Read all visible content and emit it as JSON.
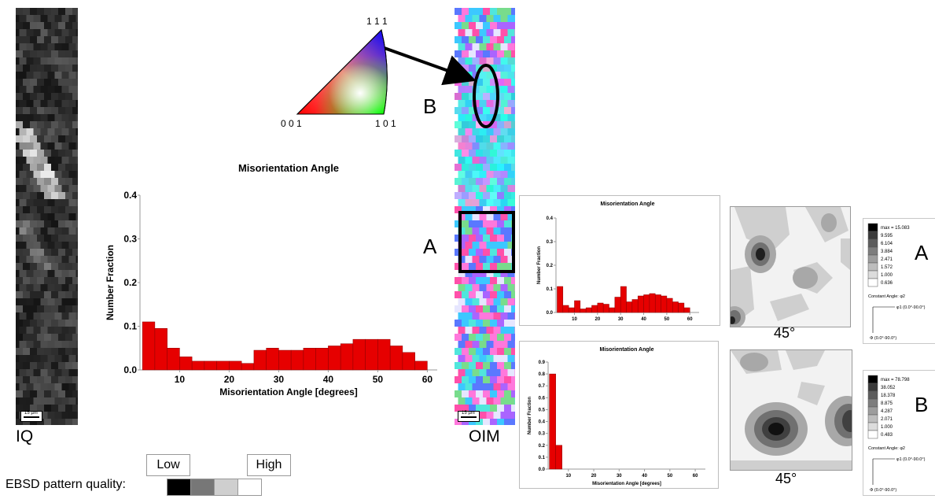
{
  "labels": {
    "iq": "IQ",
    "oim": "OIM",
    "region_a": "A",
    "region_b": "B",
    "ipf_111": "1 1 1",
    "ipf_001": "0 0 1",
    "ipf_101": "1 0 1",
    "scale_bar": "15 µm",
    "angle_top": "45°",
    "angle_bottom": "45°",
    "pole_a": "A",
    "pole_b": "B"
  },
  "quality": {
    "label": "EBSD pattern quality:",
    "low": "Low",
    "high": "High",
    "swatches": [
      "#000000",
      "#777777",
      "#cfcfcf",
      "#ffffff"
    ]
  },
  "legend_a": {
    "values": [
      "max = 15.083",
      "9.595",
      "6.104",
      "3.884",
      "2.471",
      "1.572",
      "1.000",
      "0.636"
    ],
    "const": "Constant Angle: φ2",
    "axis1": "φ1 (0.0°-90.0°)",
    "axis2": "Φ (0.0°-90.0°)"
  },
  "legend_b": {
    "values": [
      "max = 78.798",
      "38.052",
      "18.378",
      "8.875",
      "4.287",
      "2.071",
      "1.000",
      "0.483"
    ],
    "const": "Constant Angle: φ2",
    "axis1": "φ1 (0.0°-90.0°)",
    "axis2": "Φ (0.0°-90.0°)"
  },
  "colors": {
    "bar": "#e60000",
    "bar_edge": "#8a0000"
  },
  "chart_data": [
    {
      "type": "bar",
      "title": "Misorientation Angle",
      "xlabel": "Misorientation Angle [degrees]",
      "ylabel": "Number Fraction",
      "xlim": [
        2,
        62
      ],
      "ylim": [
        0,
        0.4
      ],
      "xticks": [
        10,
        20,
        30,
        40,
        50,
        60
      ],
      "yticks": [
        0.0,
        0.1,
        0.2,
        0.3,
        0.4
      ],
      "bin_width": 2.5,
      "bins_start": [
        2.5,
        5,
        7.5,
        10,
        12.5,
        15,
        17.5,
        20,
        22.5,
        25,
        27.5,
        30,
        32.5,
        35,
        37.5,
        40,
        42.5,
        45,
        47.5,
        50,
        52.5,
        55,
        57.5,
        60
      ],
      "values": [
        0.11,
        0.095,
        0.05,
        0.03,
        0.02,
        0.02,
        0.02,
        0.02,
        0.015,
        0.045,
        0.05,
        0.045,
        0.045,
        0.05,
        0.05,
        0.055,
        0.06,
        0.07,
        0.07,
        0.07,
        0.055,
        0.04,
        0.02,
        0.0
      ]
    },
    {
      "type": "bar",
      "title": "Misorientation Angle",
      "xlabel": "Misorientation Angle [degrees]",
      "ylabel": "Number Fraction",
      "xlim": [
        2,
        64
      ],
      "ylim": [
        0,
        0.4
      ],
      "xticks": [
        10,
        20,
        30,
        40,
        50,
        60
      ],
      "yticks": [
        0.0,
        0.1,
        0.2,
        0.3,
        0.4
      ],
      "bin_width": 2.5,
      "bins_start": [
        2.5,
        5,
        7.5,
        10,
        12.5,
        15,
        17.5,
        20,
        22.5,
        25,
        27.5,
        30,
        32.5,
        35,
        37.5,
        40,
        42.5,
        45,
        47.5,
        50,
        52.5,
        55,
        57.5,
        60
      ],
      "values": [
        0.11,
        0.03,
        0.02,
        0.05,
        0.015,
        0.02,
        0.03,
        0.04,
        0.035,
        0.02,
        0.065,
        0.11,
        0.045,
        0.055,
        0.07,
        0.075,
        0.08,
        0.075,
        0.07,
        0.06,
        0.045,
        0.04,
        0.02,
        0.0
      ]
    },
    {
      "type": "bar",
      "title": "Misorientation Angle",
      "xlabel": "Misorientation Angle [degrees]",
      "ylabel": "Number Fraction",
      "xlim": [
        2,
        64
      ],
      "ylim": [
        0,
        0.9
      ],
      "xticks": [
        10,
        20,
        30,
        40,
        50,
        60
      ],
      "yticks": [
        0.0,
        0.1,
        0.2,
        0.3,
        0.4,
        0.5,
        0.6,
        0.7,
        0.8,
        0.9
      ],
      "bin_width": 2.5,
      "bins_start": [
        2.5,
        5
      ],
      "values": [
        0.8,
        0.2
      ]
    }
  ]
}
